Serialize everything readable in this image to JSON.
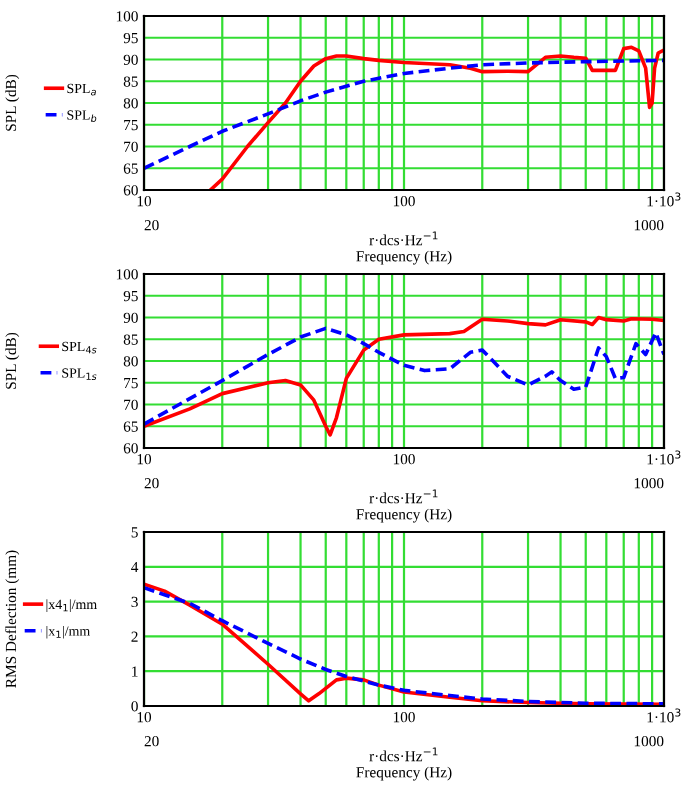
{
  "chart_data": [
    {
      "type": "line",
      "ylabel": "SPL (dB)",
      "xlabel": "r·dcs·Hz$^{−1}$\nFrequency (Hz)",
      "log": "x",
      "grid": true,
      "legend": "left",
      "xlim": [
        10,
        1000
      ],
      "ylim": [
        60,
        100
      ],
      "xticks": [
        10,
        {
          "value": 20,
          "label": null
        },
        {
          "value": 30,
          "label": null
        },
        {
          "value": 40,
          "label": null
        },
        {
          "value": 50,
          "label": null
        },
        {
          "value": 60,
          "label": null
        },
        {
          "value": 70,
          "label": null
        },
        {
          "value": 80,
          "label": null
        },
        {
          "value": 90,
          "label": null
        },
        100,
        {
          "value": 200,
          "label": null
        },
        {
          "value": 300,
          "label": null
        },
        {
          "value": 400,
          "label": null
        },
        {
          "value": 500,
          "label": null
        },
        {
          "value": 600,
          "label": null
        },
        {
          "value": 700,
          "label": null
        },
        {
          "value": 800,
          "label": null
        },
        {
          "value": 900,
          "label": null
        },
        {
          "value": 1000,
          "label": "1·10$^{3}$"
        }
      ],
      "yticks": [
        60,
        65,
        70,
        75,
        80,
        85,
        90,
        95,
        100
      ],
      "annotations": [
        "20",
        "1000"
      ],
      "series": [
        {
          "name": "SPL$_{a}$",
          "color": "#ff0000",
          "line_style": "solid",
          "x": [
            18,
            20,
            25,
            30,
            35,
            40,
            45,
            50,
            55,
            60,
            70,
            80,
            100,
            150,
            180,
            200,
            250,
            300,
            350,
            400,
            450,
            500,
            530,
            600,
            650,
            700,
            750,
            800,
            850,
            880,
            900,
            920,
            950,
            1000
          ],
          "values": [
            60,
            62.5,
            70,
            75.5,
            80,
            85,
            88.5,
            90.2,
            90.8,
            90.8,
            90.2,
            89.8,
            89.3,
            88.8,
            88,
            87.2,
            87.3,
            87.2,
            90.5,
            90.8,
            90.5,
            90.3,
            87.5,
            87.5,
            87.5,
            92.5,
            92.8,
            92,
            88,
            79,
            80,
            88,
            91.5,
            92.2
          ]
        },
        {
          "name": "SPL$_{b}$",
          "color": "#0000ff",
          "line_style": "dashed",
          "x": [
            10,
            15,
            20,
            30,
            40,
            50,
            70,
            100,
            150,
            200,
            300,
            500,
            1000
          ],
          "values": [
            65,
            70,
            73.5,
            77.5,
            80.5,
            82.5,
            85,
            86.8,
            88,
            88.8,
            89.2,
            89.5,
            89.8
          ]
        }
      ]
    },
    {
      "type": "line",
      "ylabel": "SPL (dB)",
      "xlabel": "r·dcs·Hz$^{−1}$\nFrequency (Hz)",
      "log": "x",
      "grid": true,
      "legend": "left",
      "xlim": [
        10,
        1000
      ],
      "ylim": [
        60,
        100
      ],
      "xticks": [
        10,
        {
          "value": 20,
          "label": null
        },
        {
          "value": 30,
          "label": null
        },
        {
          "value": 40,
          "label": null
        },
        {
          "value": 50,
          "label": null
        },
        {
          "value": 60,
          "label": null
        },
        {
          "value": 70,
          "label": null
        },
        {
          "value": 80,
          "label": null
        },
        {
          "value": 90,
          "label": null
        },
        100,
        {
          "value": 200,
          "label": null
        },
        {
          "value": 300,
          "label": null
        },
        {
          "value": 400,
          "label": null
        },
        {
          "value": 500,
          "label": null
        },
        {
          "value": 600,
          "label": null
        },
        {
          "value": 700,
          "label": null
        },
        {
          "value": 800,
          "label": null
        },
        {
          "value": 900,
          "label": null
        },
        {
          "value": 1000,
          "label": "1·10$^{3}$"
        }
      ],
      "yticks": [
        60,
        65,
        70,
        75,
        80,
        85,
        90,
        95,
        100
      ],
      "annotations": [
        "20",
        "1000"
      ],
      "series": [
        {
          "name": "SPL$_{4s}$",
          "color": "#ff0000",
          "line_style": "solid",
          "x": [
            10,
            15,
            20,
            30,
            35,
            40,
            45,
            50,
            52,
            55,
            60,
            70,
            80,
            100,
            150,
            170,
            200,
            250,
            300,
            350,
            400,
            500,
            530,
            560,
            600,
            700,
            750,
            900,
            1000
          ],
          "values": [
            65,
            69,
            72.5,
            75,
            75.5,
            74.5,
            71,
            65,
            63,
            67,
            76,
            82.5,
            85,
            86,
            86.3,
            86.8,
            89.6,
            89.2,
            88.6,
            88.3,
            89.5,
            89,
            88.4,
            90,
            89.5,
            89.2,
            89.7,
            89.6,
            89.3
          ]
        },
        {
          "name": "SPL$_{1s}$",
          "color": "#0000ff",
          "line_style": "dashed",
          "x": [
            10,
            20,
            30,
            40,
            50,
            60,
            70,
            80,
            100,
            120,
            150,
            180,
            200,
            220,
            250,
            300,
            350,
            370,
            400,
            450,
            500,
            560,
            600,
            650,
            700,
            780,
            850,
            930,
            1000
          ],
          "values": [
            65.5,
            75.5,
            81.5,
            85.5,
            87.5,
            86,
            84,
            82,
            79,
            77.8,
            78.2,
            82,
            82.5,
            80,
            76.5,
            74.5,
            76.5,
            77.5,
            75.5,
            73.5,
            74,
            83,
            81,
            76,
            76.2,
            84,
            81.5,
            86.5,
            81.5
          ]
        }
      ]
    },
    {
      "type": "line",
      "ylabel": "RMS Deflection (mm)",
      "xlabel": "r·dcs·Hz$^{−1}$\nFrequency (Hz)",
      "log": "x",
      "grid": true,
      "legend": "left",
      "xlim": [
        10,
        1000
      ],
      "ylim": [
        0,
        5
      ],
      "xticks": [
        10,
        {
          "value": 20,
          "label": null
        },
        {
          "value": 30,
          "label": null
        },
        {
          "value": 40,
          "label": null
        },
        {
          "value": 50,
          "label": null
        },
        {
          "value": 60,
          "label": null
        },
        {
          "value": 70,
          "label": null
        },
        {
          "value": 80,
          "label": null
        },
        {
          "value": 90,
          "label": null
        },
        100,
        {
          "value": 200,
          "label": null
        },
        {
          "value": 300,
          "label": null
        },
        {
          "value": 400,
          "label": null
        },
        {
          "value": 500,
          "label": null
        },
        {
          "value": 600,
          "label": null
        },
        {
          "value": 700,
          "label": null
        },
        {
          "value": 800,
          "label": null
        },
        {
          "value": 900,
          "label": null
        },
        {
          "value": 1000,
          "label": "1·10$^{3}$"
        }
      ],
      "yticks": [
        0,
        1,
        2,
        3,
        4,
        5
      ],
      "annotations": [
        "20",
        "1000"
      ],
      "series": [
        {
          "name": "|x4$_{1}$|/mm",
          "color": "#ff0000",
          "line_style": "solid",
          "x": [
            10,
            12,
            15,
            20,
            30,
            40,
            43,
            47,
            55,
            60,
            70,
            80,
            100,
            150,
            200,
            300,
            500,
            1000
          ],
          "values": [
            3.5,
            3.3,
            2.9,
            2.35,
            1.2,
            0.35,
            0.15,
            0.35,
            0.75,
            0.8,
            0.75,
            0.6,
            0.4,
            0.25,
            0.15,
            0.1,
            0.06,
            0.05
          ]
        },
        {
          "name": "|x$_{1}$|/mm",
          "color": "#0000ff",
          "line_style": "dashed",
          "x": [
            10,
            15,
            20,
            30,
            40,
            50,
            60,
            80,
            100,
            150,
            200,
            300,
            500,
            1000
          ],
          "values": [
            3.4,
            2.95,
            2.45,
            1.8,
            1.35,
            1.05,
            0.85,
            0.6,
            0.45,
            0.3,
            0.2,
            0.13,
            0.08,
            0.06
          ]
        }
      ]
    }
  ]
}
